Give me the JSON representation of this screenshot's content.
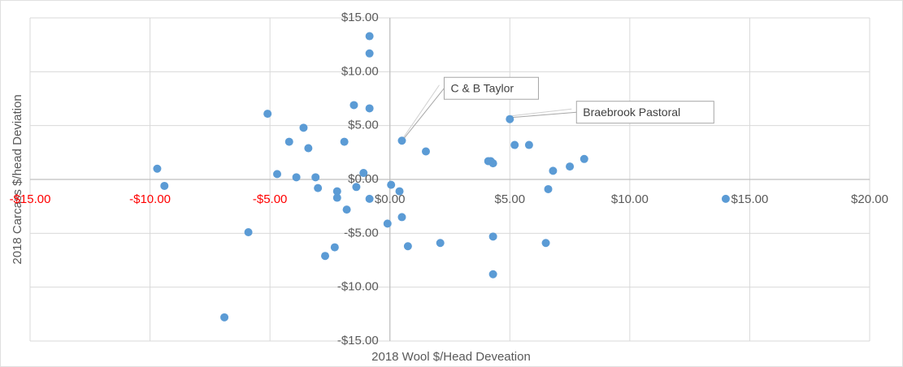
{
  "chart_data": {
    "type": "scatter",
    "xlabel": "2018 Wool $/Head Deveation",
    "ylabel": "2018 Carcass $/head Deviation",
    "xlim": [
      -15,
      20
    ],
    "ylim": [
      -15,
      15
    ],
    "xticks": [
      {
        "value": -15,
        "label": "-$15.00"
      },
      {
        "value": -10,
        "label": "-$10.00"
      },
      {
        "value": -5,
        "label": "-$5.00"
      },
      {
        "value": 0,
        "label": "$0.00"
      },
      {
        "value": 5,
        "label": "$5.00"
      },
      {
        "value": 10,
        "label": "$10.00"
      },
      {
        "value": 15,
        "label": "$15.00"
      },
      {
        "value": 20,
        "label": "$20.00"
      }
    ],
    "yticks": [
      {
        "value": 15,
        "label": "$15.00"
      },
      {
        "value": 10,
        "label": "$10.00"
      },
      {
        "value": 5,
        "label": "$5.00"
      },
      {
        "value": 0,
        "label": "$0.00"
      },
      {
        "value": -5,
        "label": "-$5.00"
      },
      {
        "value": -10,
        "label": "-$10.00"
      },
      {
        "value": -15,
        "label": "-$15.00"
      }
    ],
    "grid": true,
    "color": "#5b9bd5",
    "xtick_negative_color": "#ff0000",
    "x": [
      -0.85,
      -0.85,
      -5.1,
      -1.5,
      -0.85,
      -3.6,
      -4.2,
      -3.4,
      -1.9,
      0.5,
      1.5,
      5.0,
      5.2,
      5.8,
      4.1,
      4.2,
      4.3,
      8.1,
      7.5,
      6.8,
      6.6,
      -9.7,
      -9.4,
      -4.7,
      -3.9,
      -3.1,
      -3.0,
      -1.1,
      -1.4,
      -2.2,
      -2.2,
      -0.85,
      -1.8,
      0.05,
      0.4,
      0.5,
      -0.1,
      -5.9,
      0.75,
      2.1,
      4.3,
      6.5,
      -2.3,
      -2.7,
      4.3,
      -6.9,
      14.0
    ],
    "values": [
      13.3,
      11.7,
      6.1,
      6.9,
      6.6,
      4.8,
      3.5,
      2.9,
      3.5,
      3.6,
      2.6,
      5.6,
      3.2,
      3.2,
      1.7,
      1.7,
      1.5,
      1.9,
      1.2,
      0.8,
      -0.9,
      1.0,
      -0.6,
      0.5,
      0.2,
      0.2,
      -0.8,
      0.6,
      -0.7,
      -1.1,
      -1.7,
      -1.8,
      -2.8,
      -0.5,
      -1.1,
      -3.5,
      -4.1,
      -4.9,
      -6.2,
      -5.9,
      -5.3,
      -5.9,
      -6.3,
      -7.1,
      -8.8,
      -12.8,
      -1.8
    ],
    "annotations": [
      {
        "text": "C & B Taylor",
        "point": 9
      },
      {
        "text": "Braebrook Pastoral",
        "point": 11
      }
    ]
  }
}
